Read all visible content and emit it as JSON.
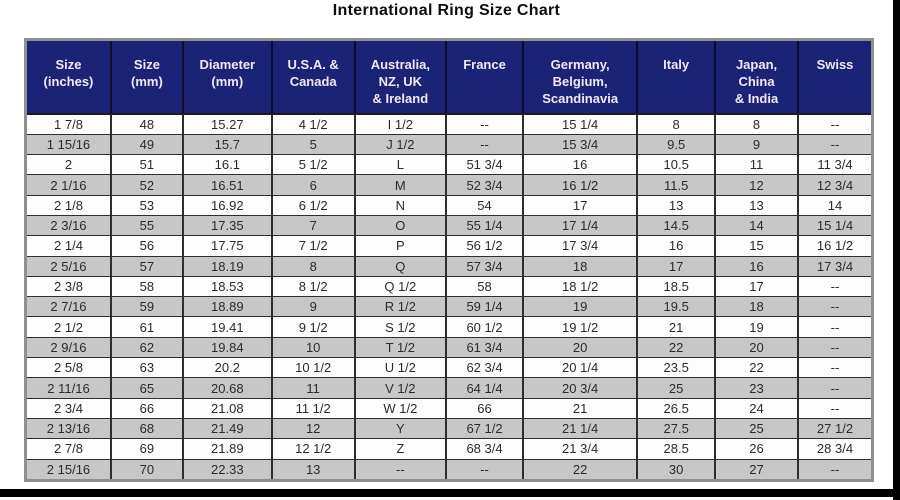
{
  "title": "International Ring Size Chart",
  "colors": {
    "header_bg": "#1b2376",
    "header_text": "#f2e9f4",
    "row_bg": "#fdfdfd",
    "row_alt_bg": "#c7c7c8",
    "grid_line": "#2e2e2e",
    "outer_border": "#8f8f8f",
    "frame_bar": "#000000"
  },
  "chart_data": {
    "type": "table",
    "title": "International Ring Size Chart",
    "columns": [
      "Size\n(inches)",
      "Size\n(mm)",
      "Diameter\n(mm)",
      "U.S.A. &\nCanada",
      "Australia,\nNZ, UK\n& Ireland",
      "France",
      "Germany,\nBelgium,\nScandinavia",
      "Italy",
      "Japan,\nChina\n& India",
      "Swiss"
    ],
    "rows": [
      [
        "1 7/8",
        "48",
        "15.27",
        "4 1/2",
        "I 1/2",
        "--",
        "15 1/4",
        "8",
        "8",
        "--"
      ],
      [
        "1 15/16",
        "49",
        "15.7",
        "5",
        "J 1/2",
        "--",
        "15 3/4",
        "9.5",
        "9",
        "--"
      ],
      [
        "2",
        "51",
        "16.1",
        "5 1/2",
        "L",
        "51 3/4",
        "16",
        "10.5",
        "11",
        "11 3/4"
      ],
      [
        "2 1/16",
        "52",
        "16.51",
        "6",
        "M",
        "52 3/4",
        "16 1/2",
        "11.5",
        "12",
        "12 3/4"
      ],
      [
        "2 1/8",
        "53",
        "16.92",
        "6 1/2",
        "N",
        "54",
        "17",
        "13",
        "13",
        "14"
      ],
      [
        "2 3/16",
        "55",
        "17.35",
        "7",
        "O",
        "55 1/4",
        "17 1/4",
        "14.5",
        "14",
        "15 1/4"
      ],
      [
        "2 1/4",
        "56",
        "17.75",
        "7 1/2",
        "P",
        "56 1/2",
        "17 3/4",
        "16",
        "15",
        "16 1/2"
      ],
      [
        "2 5/16",
        "57",
        "18.19",
        "8",
        "Q",
        "57 3/4",
        "18",
        "17",
        "16",
        "17 3/4"
      ],
      [
        "2 3/8",
        "58",
        "18.53",
        "8 1/2",
        "Q 1/2",
        "58",
        "18 1/2",
        "18.5",
        "17",
        "--"
      ],
      [
        "2 7/16",
        "59",
        "18.89",
        "9",
        "R 1/2",
        "59 1/4",
        "19",
        "19.5",
        "18",
        "--"
      ],
      [
        "2 1/2",
        "61",
        "19.41",
        "9 1/2",
        "S 1/2",
        "60 1/2",
        "19 1/2",
        "21",
        "19",
        "--"
      ],
      [
        "2 9/16",
        "62",
        "19.84",
        "10",
        "T 1/2",
        "61 3/4",
        "20",
        "22",
        "20",
        "--"
      ],
      [
        "2 5/8",
        "63",
        "20.2",
        "10 1/2",
        "U 1/2",
        "62 3/4",
        "20 1/4",
        "23.5",
        "22",
        "--"
      ],
      [
        "2 11/16",
        "65",
        "20.68",
        "11",
        "V 1/2",
        "64 1/4",
        "20 3/4",
        "25",
        "23",
        "--"
      ],
      [
        "2 3/4",
        "66",
        "21.08",
        "11 1/2",
        "W 1/2",
        "66",
        "21",
        "26.5",
        "24",
        "--"
      ],
      [
        "2 13/16",
        "68",
        "21.49",
        "12",
        "Y",
        "67 1/2",
        "21 1/4",
        "27.5",
        "25",
        "27 1/2"
      ],
      [
        "2 7/8",
        "69",
        "21.89",
        "12 1/2",
        "Z",
        "68 3/4",
        "21 3/4",
        "28.5",
        "26",
        "28 3/4"
      ],
      [
        "2 15/16",
        "70",
        "22.33",
        "13",
        "--",
        "--",
        "22",
        "30",
        "27",
        "--"
      ]
    ]
  }
}
